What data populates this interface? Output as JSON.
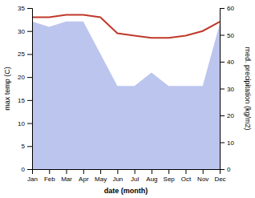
{
  "chart_data": {
    "type": "line",
    "categories": [
      "Jan",
      "Feb",
      "Mar",
      "Apr",
      "May",
      "Jun",
      "Jul",
      "Aug",
      "Sep",
      "Oct",
      "Nov",
      "Dec"
    ],
    "series": [
      {
        "type": "area",
        "color": "#bcc5ee",
        "axis": "y2",
        "values": [
          55,
          53,
          55,
          55,
          43,
          31,
          31,
          36,
          31,
          31,
          31,
          54
        ]
      },
      {
        "type": "line",
        "color": "#c0392b",
        "values": [
          33,
          33,
          33.5,
          33.5,
          33,
          29.5,
          29,
          28.5,
          28.5,
          29,
          30,
          32
        ]
      }
    ],
    "ylim": [
      0,
      35
    ],
    "yticks": [
      0,
      5,
      10,
      15,
      20,
      25,
      30,
      35
    ],
    "y2lim": [
      0,
      60
    ],
    "y2ticks": [
      0,
      10,
      20,
      30,
      40,
      50,
      60
    ],
    "ylabel": "max temp (C)",
    "y2label": "med. precipitation (kg/m2)",
    "xlabel": "date (month)",
    "grid": false
  }
}
